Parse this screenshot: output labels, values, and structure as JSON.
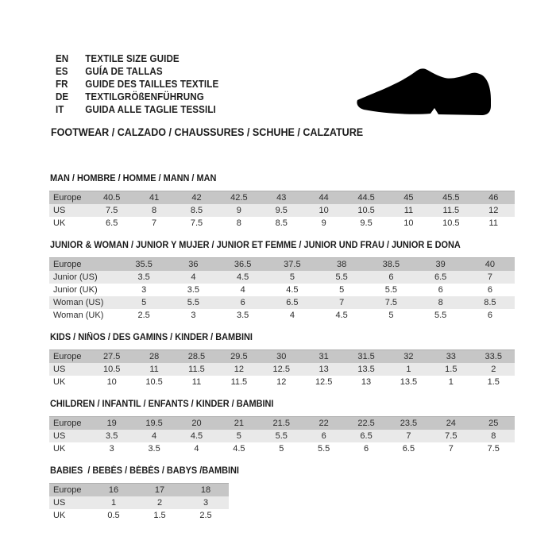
{
  "header": {
    "languages": [
      {
        "code": "EN",
        "label": "TEXTILE SIZE GUIDE"
      },
      {
        "code": "ES",
        "label": "GUÍA DE TALLAS"
      },
      {
        "code": "FR",
        "label": "GUIDE DES TAILLES TEXTILE"
      },
      {
        "code": "DE",
        "label": "TEXTILGRÖßENFÜHRUNG"
      },
      {
        "code": "IT",
        "label": "GUIDA ALLE TAGLIE TESSILI"
      }
    ],
    "footwear_line": "FOOTWEAR / CALZADO / CHAUSSURES / SCHUHE / CALZATURE",
    "shoe_icon": "dress-shoe-silhouette"
  },
  "colors": {
    "header_row_bg": "#c6c6c6",
    "alt_row_bg": "#e9e9e9",
    "text": "#2d2d2d",
    "shoe": "#000000"
  },
  "tables": [
    {
      "title": "MAN / HOMBRE / HOMME / MANN / MAN",
      "rows": [
        {
          "label": "Europe",
          "values": [
            "40.5",
            "41",
            "42",
            "42.5",
            "43",
            "44",
            "44.5",
            "45",
            "45.5",
            "46"
          ]
        },
        {
          "label": "US",
          "values": [
            "7.5",
            "8",
            "8.5",
            "9",
            "9.5",
            "10",
            "10.5",
            "11",
            "11.5",
            "12"
          ]
        },
        {
          "label": "UK",
          "values": [
            "6.5",
            "7",
            "7.5",
            "8",
            "8.5",
            "9",
            "9.5",
            "10",
            "10.5",
            "11"
          ]
        }
      ]
    },
    {
      "title": "JUNIOR & WOMAN / JUNIOR Y MUJER / JUNIOR ET FEMME / JUNIOR UND FRAU / JUNIOR E DONA",
      "rows": [
        {
          "label": "Europe",
          "values": [
            "35.5",
            "36",
            "36.5",
            "37.5",
            "38",
            "38.5",
            "39",
            "40"
          ]
        },
        {
          "label": "Junior (US)",
          "values": [
            "3.5",
            "4",
            "4.5",
            "5",
            "5.5",
            "6",
            "6.5",
            "7"
          ]
        },
        {
          "label": "Junior (UK)",
          "values": [
            "3",
            "3.5",
            "4",
            "4.5",
            "5",
            "5.5",
            "6",
            "6"
          ]
        },
        {
          "label": "Woman (US)",
          "values": [
            "5",
            "5.5",
            "6",
            "6.5",
            "7",
            "7.5",
            "8",
            "8.5"
          ]
        },
        {
          "label": "Woman (UK)",
          "values": [
            "2.5",
            "3",
            "3.5",
            "4",
            "4.5",
            "5",
            "5.5",
            "6"
          ]
        }
      ]
    },
    {
      "title": "KIDS / NIÑOS / DES GAMINS / KINDER / BAMBINI",
      "rows": [
        {
          "label": "Europe",
          "values": [
            "27.5",
            "28",
            "28.5",
            "29.5",
            "30",
            "31",
            "31.5",
            "32",
            "33",
            "33.5"
          ]
        },
        {
          "label": "US",
          "values": [
            "10.5",
            "11",
            "11.5",
            "12",
            "12.5",
            "13",
            "13.5",
            "1",
            "1.5",
            "2"
          ]
        },
        {
          "label": "UK",
          "values": [
            "10",
            "10.5",
            "11",
            "11.5",
            "12",
            "12.5",
            "13",
            "13.5",
            "1",
            "1.5"
          ]
        }
      ]
    },
    {
      "title": "CHILDREN / INFANTIL / ENFANTS / KINDER / BAMBINI",
      "rows": [
        {
          "label": "Europe",
          "values": [
            "19",
            "19.5",
            "20",
            "21",
            "21.5",
            "22",
            "22.5",
            "23.5",
            "24",
            "25"
          ]
        },
        {
          "label": "US",
          "values": [
            "3.5",
            "4",
            "4.5",
            "5",
            "5.5",
            "6",
            "6.5",
            "7",
            "7.5",
            "8"
          ]
        },
        {
          "label": "UK",
          "values": [
            "3",
            "3.5",
            "4",
            "4.5",
            "5",
            "5.5",
            "6",
            "6.5",
            "7",
            "7.5"
          ]
        }
      ]
    },
    {
      "title": "BABIES  / BEBÉS / BÉBÉS / BABYS /BAMBINI",
      "rows": [
        {
          "label": "Europe",
          "values": [
            "16",
            "17",
            "18"
          ]
        },
        {
          "label": "US",
          "values": [
            "1",
            "2",
            "3"
          ]
        },
        {
          "label": "UK",
          "values": [
            "0.5",
            "1.5",
            "2.5"
          ]
        }
      ]
    }
  ]
}
